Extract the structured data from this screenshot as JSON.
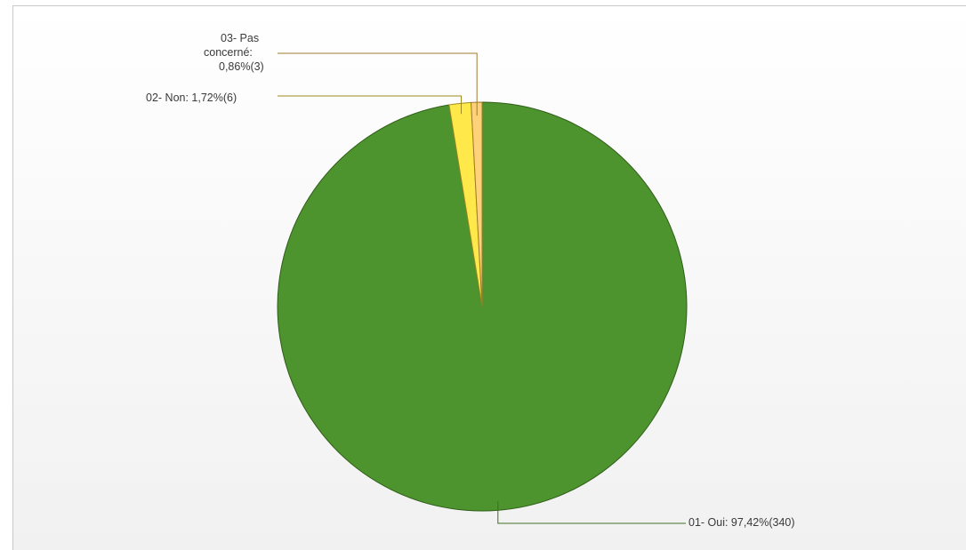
{
  "chart_data": {
    "type": "pie",
    "slices": [
      {
        "label": "01- Oui: 97,42%(340)",
        "category": "01- Oui",
        "percent": 97.42,
        "count": 340,
        "color": "#4e942e",
        "stroke": "#2f5e1a"
      },
      {
        "label": "02- Non: 1,72%(6)",
        "category": "02- Non",
        "percent": 1.72,
        "count": 6,
        "color": "#ffe84a",
        "stroke": "#a08a1e"
      },
      {
        "label_lines": [
          "03- Pas",
          "concerné:",
          "0,86%(3)"
        ],
        "category": "03- Pas concerné",
        "percent": 0.86,
        "count": 3,
        "color": "#ffd27a",
        "stroke": "#a07a2e"
      }
    ],
    "legend": "none",
    "start": "top",
    "direction": "clockwise"
  }
}
